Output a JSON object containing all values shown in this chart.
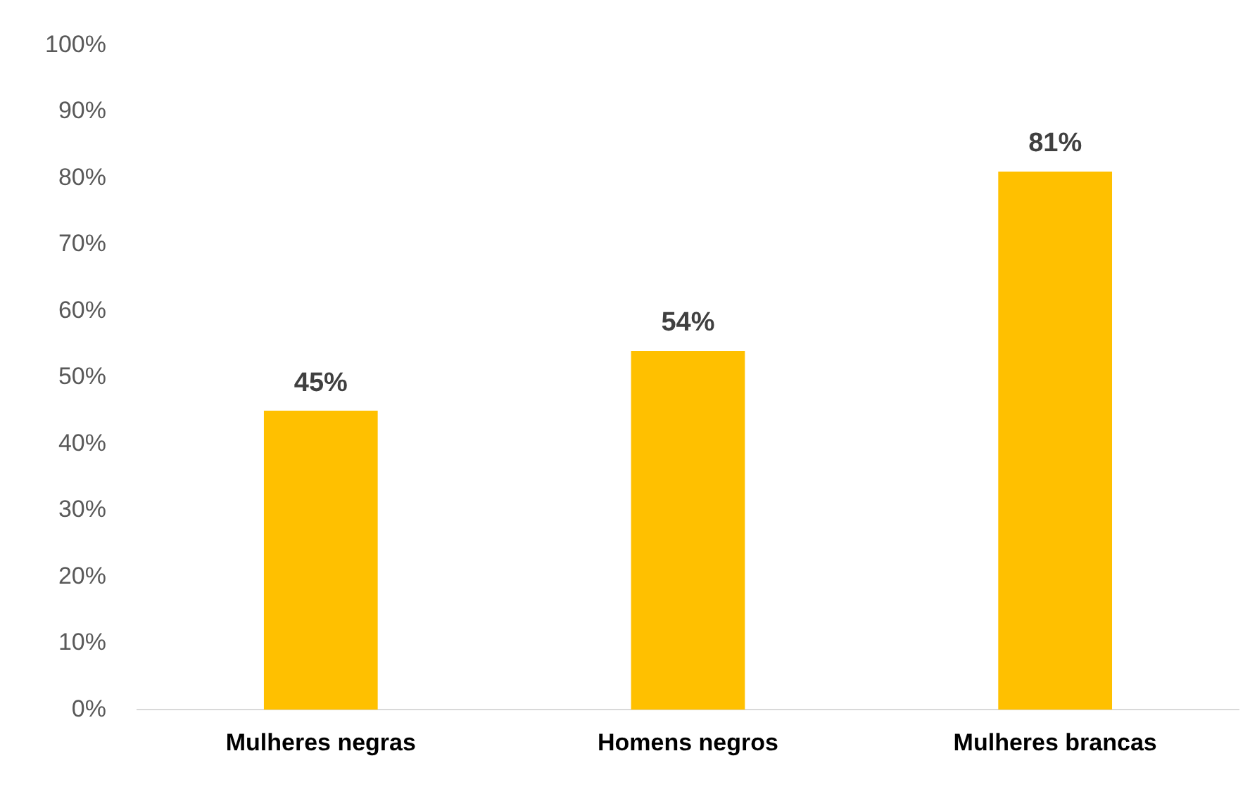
{
  "chart_data": {
    "type": "bar",
    "categories": [
      "Mulheres negras",
      "Homens negros",
      "Mulheres brancas"
    ],
    "values": [
      45,
      54,
      81
    ],
    "value_labels": [
      "45%",
      "54%",
      "81%"
    ],
    "color": "#ffc000",
    "ylim": [
      0,
      100
    ],
    "yticks": [
      {
        "value": 0,
        "label": "0%"
      },
      {
        "value": 10,
        "label": "10%"
      },
      {
        "value": 20,
        "label": "20%"
      },
      {
        "value": 30,
        "label": "30%"
      },
      {
        "value": 40,
        "label": "40%"
      },
      {
        "value": 50,
        "label": "50%"
      },
      {
        "value": 60,
        "label": "60%"
      },
      {
        "value": 70,
        "label": "70%"
      },
      {
        "value": 80,
        "label": "80%"
      },
      {
        "value": 90,
        "label": "90%"
      },
      {
        "value": 100,
        "label": "100%"
      }
    ],
    "grid": false,
    "legend": false
  }
}
